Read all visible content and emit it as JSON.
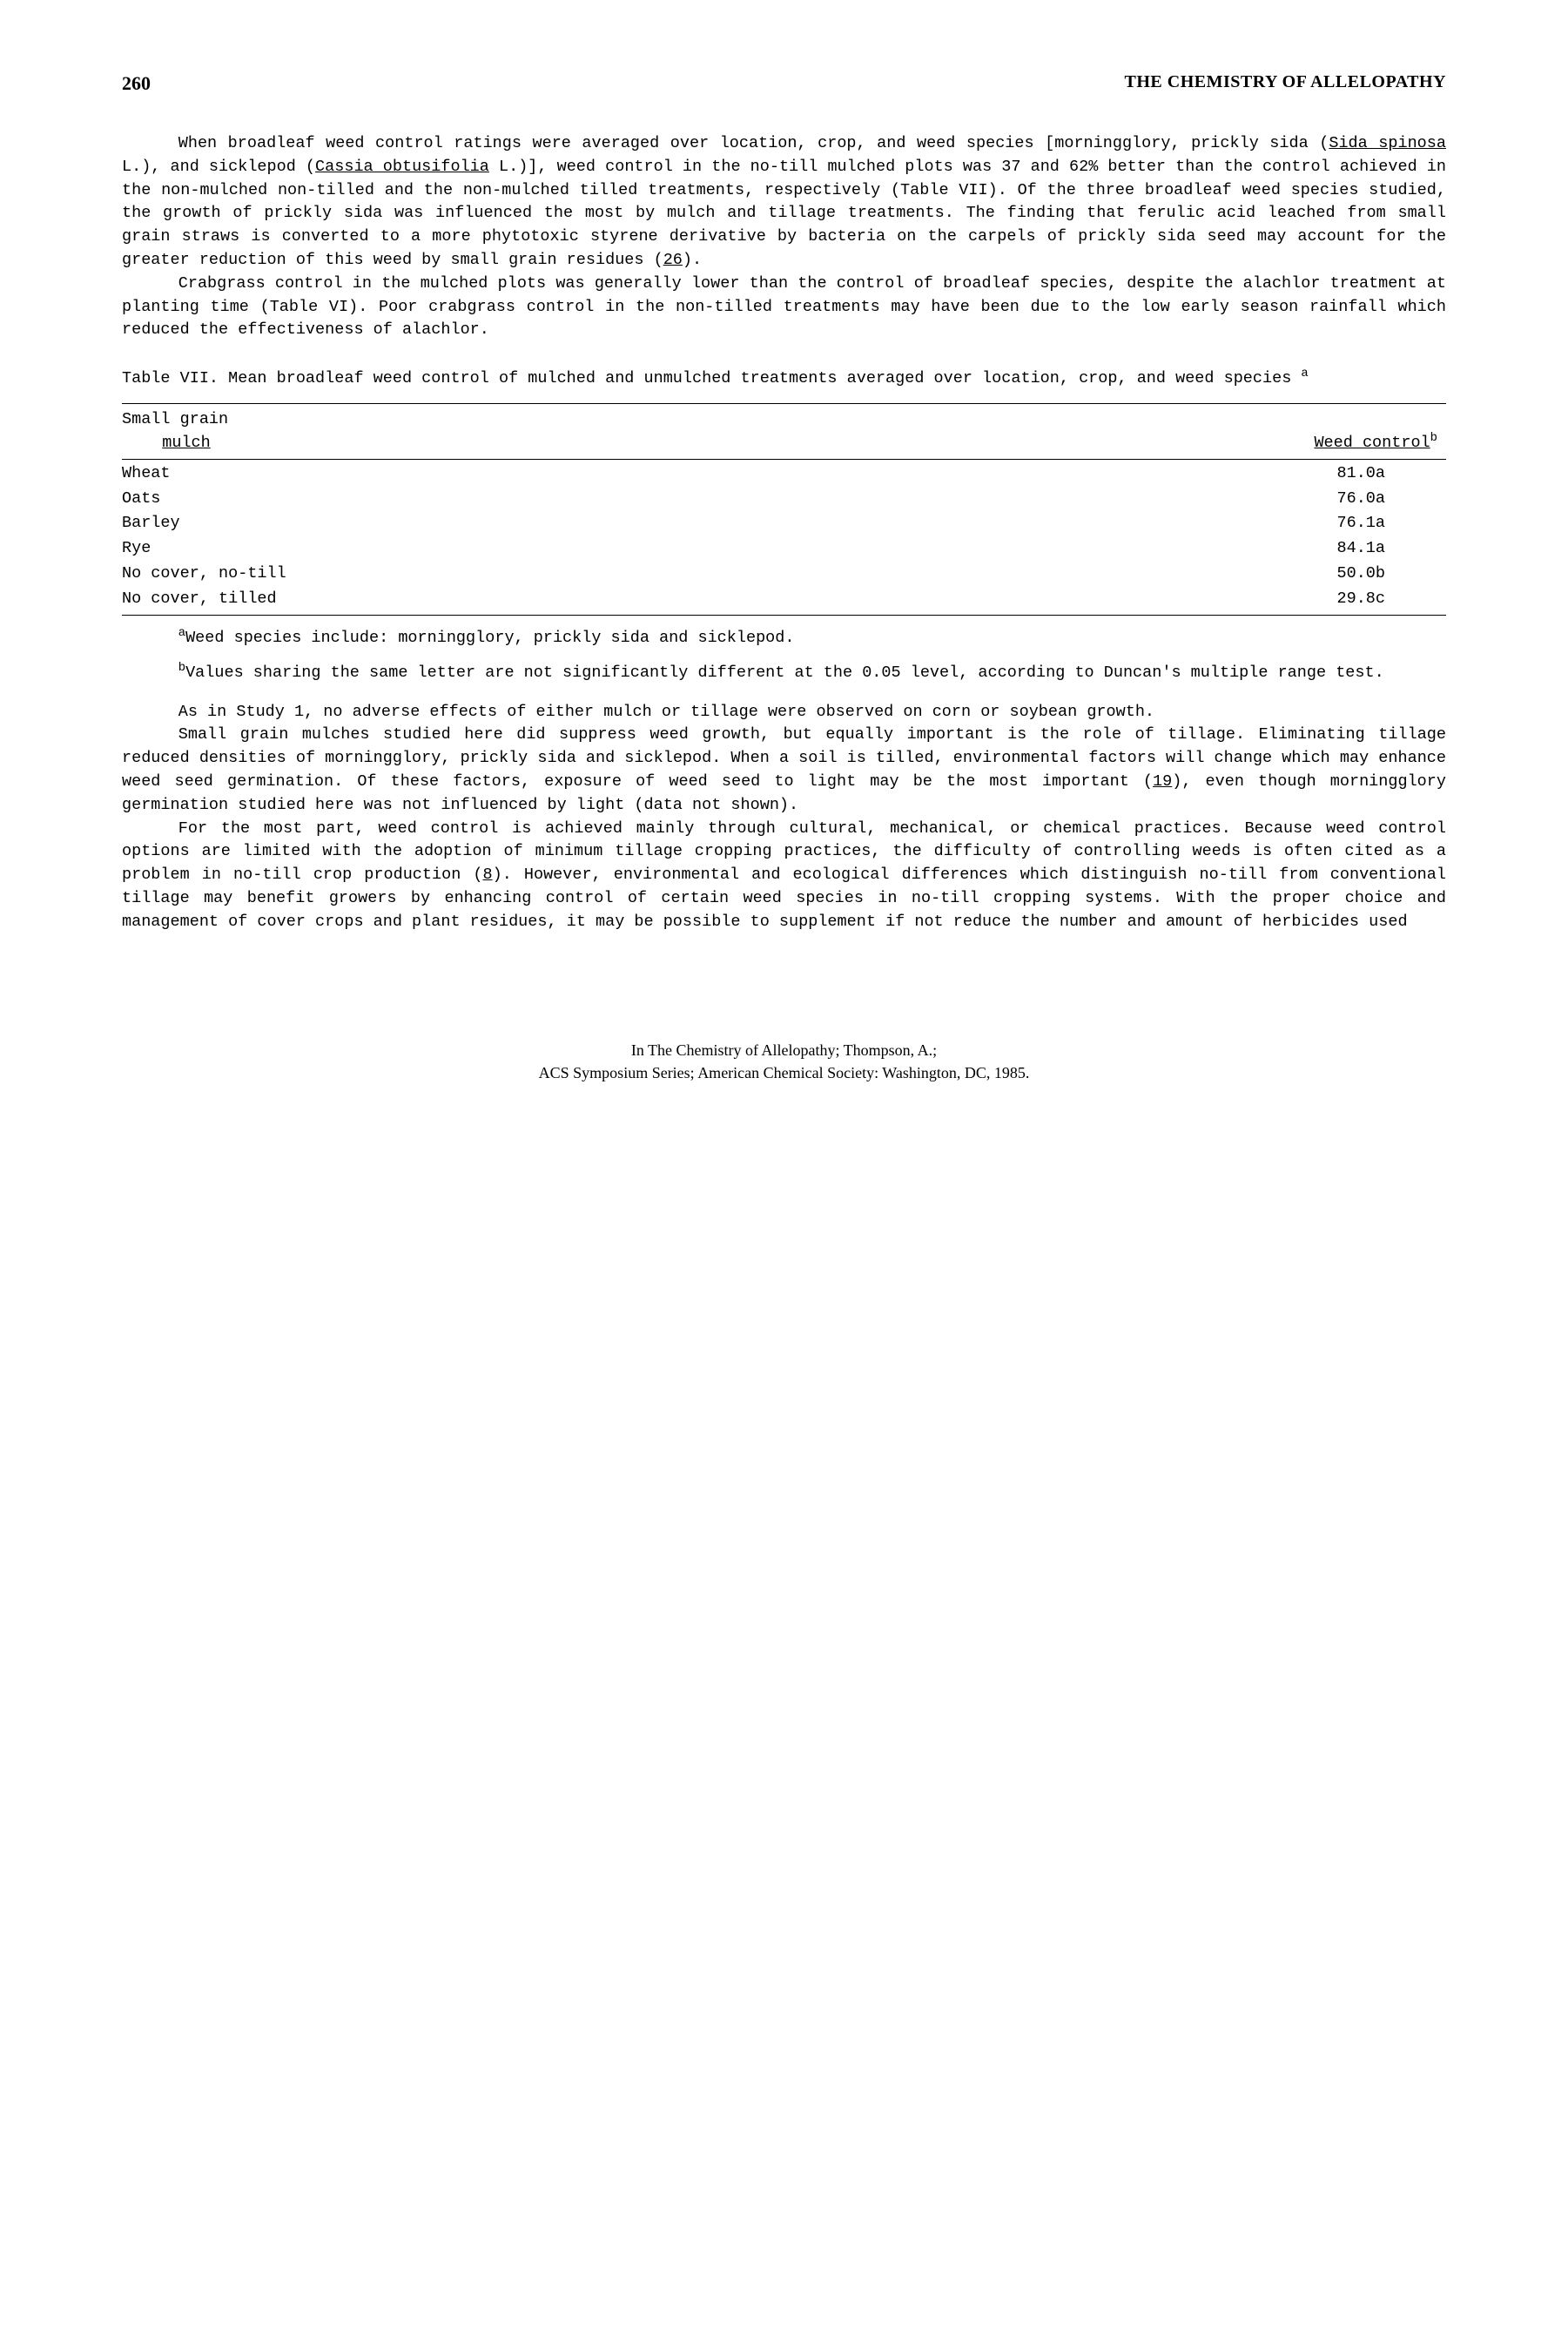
{
  "header": {
    "page_number": "260",
    "book_title": "THE CHEMISTRY OF ALLELOPATHY"
  },
  "paragraphs": {
    "p1_a": "When broadleaf weed control ratings were averaged over location, crop, and weed species [morningglory, prickly sida (",
    "p1_sida": "Sida spinosa",
    "p1_b": " L.), and sicklepod (",
    "p1_cassia": "Cassia obtusifolia",
    "p1_c": " L.)], weed control in the no-till mulched plots was 37 and 62% better than the control achieved in the non-mulched non-tilled and the non-mulched tilled treatments, respectively (Table VII).  Of the three broadleaf weed species studied, the growth of prickly sida was influenced the most by mulch and tillage treatments.  The finding that ferulic acid leached from small grain straws is converted to a more phytotoxic styrene derivative by bacteria on the carpels of prickly sida seed may account for the greater reduction of this weed by small grain residues (",
    "p1_ref26": "26",
    "p1_d": ").",
    "p2": "Crabgrass control in the mulched plots was generally lower than the control of broadleaf species, despite the alachlor treatment at planting time (Table VI).  Poor crabgrass control in the non-tilled treatments may have been due to the low early season rainfall which reduced the effectiveness of alachlor.",
    "p3": "As in Study 1, no adverse effects of either mulch or tillage were observed on corn or soybean growth.",
    "p4_a": "Small grain mulches studied here did suppress weed growth, but equally important is the role of tillage.  Eliminating tillage reduced densities of morningglory, prickly sida and sicklepod.  When a soil is tilled, environmental factors will change which may enhance weed seed germination.  Of these factors, exposure of weed seed to light may be the most important (",
    "p4_ref19": "19",
    "p4_b": "), even though morningglory germination studied here was not influenced by light (data not shown).",
    "p5_a": "For the most part, weed control is achieved mainly through cultural, mechanical, or chemical practices.  Because weed control options are limited with the adoption of minimum tillage cropping practices, the difficulty of controlling weeds is often cited as a problem in no-till crop production (",
    "p5_ref8": "8",
    "p5_b": ").  However, environmental and ecological differences which distinguish no-till from conventional tillage may benefit growers by enhancing control of certain weed species in no-till cropping systems.  With the proper choice and management of cover crops and plant residues, it may be possible to supplement if not reduce the number and amount of herbicides used"
  },
  "table": {
    "title_a": "Table VII.  Mean broadleaf weed control of mulched and unmulched treatments averaged over location, crop, and weed species ",
    "title_sup": "a",
    "col1_line1": "Small grain",
    "col1_line2": "mulch",
    "col2": "Weed control",
    "col2_sup": "b",
    "rows": [
      {
        "mulch": "Wheat",
        "value": "81.0a"
      },
      {
        "mulch": "Oats",
        "value": "76.0a"
      },
      {
        "mulch": "Barley",
        "value": "76.1a"
      },
      {
        "mulch": "Rye",
        "value": "84.1a"
      },
      {
        "mulch": "No cover, no-till",
        "value": "50.0b"
      },
      {
        "mulch": "No cover, tilled",
        "value": "29.8c"
      }
    ],
    "footnote_a_sup": "a",
    "footnote_a": "Weed species include:  morningglory, prickly sida and sicklepod.",
    "footnote_b_sup": "b",
    "footnote_b": "Values sharing the same letter are not significantly different at the 0.05 level, according to Duncan's multiple range test."
  },
  "footer": {
    "line1": "In The Chemistry of Allelopathy; Thompson, A.;",
    "line2": "ACS Symposium Series; American Chemical Society: Washington, DC, 1985."
  }
}
